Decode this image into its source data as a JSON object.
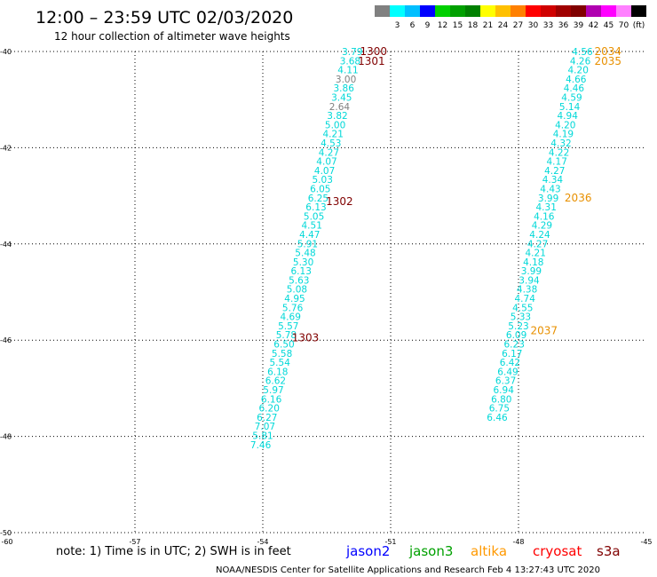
{
  "title": "12:00 – 23:59 UTC 02/03/2020",
  "subtitle": "12 hour collection of altimeter wave heights",
  "note": "note: 1) Time is in UTC; 2) SWH is in feet",
  "credit": "NOAA/NESDIS Center for Satellite Applications and Research   Feb  4 13:27:43 UTC 2020",
  "colorbar": {
    "unit_label": "(ft)",
    "labels": [
      "3",
      "6",
      "9",
      "12",
      "15",
      "18",
      "21",
      "24",
      "27",
      "30",
      "33",
      "36",
      "39",
      "42",
      "45",
      "70"
    ],
    "colors": [
      "#808080",
      "#00ffff",
      "#00bfff",
      "#0000ff",
      "#00d000",
      "#00a000",
      "#008000",
      "#ffff00",
      "#ffc000",
      "#ff8000",
      "#ff0000",
      "#d00000",
      "#a00000",
      "#800000",
      "#b000b0",
      "#ff00ff",
      "#ff80ff",
      "#000000"
    ]
  },
  "legend": [
    {
      "name": "jason2",
      "color": "#0000ff"
    },
    {
      "name": "jason3",
      "color": "#00a000"
    },
    {
      "name": "altika",
      "color": "#ff9900"
    },
    {
      "name": "cryosat",
      "color": "#ff0000"
    },
    {
      "name": "s3a",
      "color": "#800000"
    }
  ],
  "chart_data": {
    "type": "scatter",
    "xlim": [
      -60,
      -45
    ],
    "ylim": [
      -50,
      -40
    ],
    "x_ticks": [
      -60,
      -57,
      -54,
      -51,
      -48,
      -45
    ],
    "y_ticks": [
      -40,
      -42,
      -44,
      -46,
      -48,
      -50
    ],
    "x_tick_labels": [
      "-60",
      "-57",
      "-54",
      "-51",
      "-48",
      "-45"
    ],
    "y_tick_labels": [
      "-40",
      "-42",
      "-44",
      "-46",
      "-48",
      "-50"
    ],
    "grid": true,
    "series": [
      {
        "name": "s3a",
        "color": "#00d8d8",
        "values": [
          {
            "x": -51.9,
            "y": -40.0,
            "v": "3.79",
            "c": "#00d8d8"
          },
          {
            "x": -51.95,
            "y": -40.19,
            "v": "3.68",
            "c": "#00d8d8"
          },
          {
            "x": -52.0,
            "y": -40.38,
            "v": "4.11",
            "c": "#00d8d8"
          },
          {
            "x": -52.05,
            "y": -40.57,
            "v": "3.00",
            "c": "#808080"
          },
          {
            "x": -52.1,
            "y": -40.76,
            "v": "3.86",
            "c": "#00d8d8"
          },
          {
            "x": -52.15,
            "y": -40.95,
            "v": "3.45",
            "c": "#00d8d8"
          },
          {
            "x": -52.2,
            "y": -41.14,
            "v": "2.64",
            "c": "#808080"
          },
          {
            "x": -52.25,
            "y": -41.33,
            "v": "3.82",
            "c": "#00d8d8"
          },
          {
            "x": -52.3,
            "y": -41.52,
            "v": "5.00",
            "c": "#00d8d8"
          },
          {
            "x": -52.35,
            "y": -41.71,
            "v": "4.21",
            "c": "#00d8d8"
          },
          {
            "x": -52.4,
            "y": -41.9,
            "v": "4.53",
            "c": "#00d8d8"
          },
          {
            "x": -52.45,
            "y": -42.09,
            "v": "4.27",
            "c": "#00d8d8"
          },
          {
            "x": -52.5,
            "y": -42.28,
            "v": "4.07",
            "c": "#00d8d8"
          },
          {
            "x": -52.55,
            "y": -42.47,
            "v": "4.07",
            "c": "#00d8d8"
          },
          {
            "x": -52.6,
            "y": -42.66,
            "v": "5.03",
            "c": "#00d8d8"
          },
          {
            "x": -52.65,
            "y": -42.85,
            "v": "6.05",
            "c": "#00d8d8"
          },
          {
            "x": -52.7,
            "y": -43.04,
            "v": "6.25",
            "c": "#00d8d8"
          },
          {
            "x": -52.75,
            "y": -43.23,
            "v": "6.13",
            "c": "#00d8d8"
          },
          {
            "x": -52.8,
            "y": -43.42,
            "v": "5.05",
            "c": "#00d8d8"
          },
          {
            "x": -52.85,
            "y": -43.61,
            "v": "4.51",
            "c": "#00d8d8"
          },
          {
            "x": -52.9,
            "y": -43.8,
            "v": "4.47",
            "c": "#00d8d8"
          },
          {
            "x": -52.95,
            "y": -43.99,
            "v": "5.91",
            "c": "#00d8d8"
          },
          {
            "x": -53.0,
            "y": -44.18,
            "v": "5.48",
            "c": "#00d8d8"
          },
          {
            "x": -53.05,
            "y": -44.37,
            "v": "5.30",
            "c": "#00d8d8"
          },
          {
            "x": -53.1,
            "y": -44.56,
            "v": "6.13",
            "c": "#00d8d8"
          },
          {
            "x": -53.15,
            "y": -44.75,
            "v": "5.63",
            "c": "#00d8d8"
          },
          {
            "x": -53.2,
            "y": -44.94,
            "v": "5.08",
            "c": "#00d8d8"
          },
          {
            "x": -53.25,
            "y": -45.13,
            "v": "4.95",
            "c": "#00d8d8"
          },
          {
            "x": -53.3,
            "y": -45.32,
            "v": "5.76",
            "c": "#00d8d8"
          },
          {
            "x": -53.35,
            "y": -45.51,
            "v": "4.69",
            "c": "#00d8d8"
          },
          {
            "x": -53.4,
            "y": -45.7,
            "v": "5.57",
            "c": "#00d8d8"
          },
          {
            "x": -53.45,
            "y": -45.89,
            "v": "5.78",
            "c": "#00d8d8"
          },
          {
            "x": -53.5,
            "y": -46.08,
            "v": "6.50",
            "c": "#00d8d8"
          },
          {
            "x": -53.55,
            "y": -46.27,
            "v": "5.58",
            "c": "#00d8d8"
          },
          {
            "x": -53.6,
            "y": -46.46,
            "v": "5.54",
            "c": "#00d8d8"
          },
          {
            "x": -53.65,
            "y": -46.65,
            "v": "6.18",
            "c": "#00d8d8"
          },
          {
            "x": -53.7,
            "y": -46.84,
            "v": "6.62",
            "c": "#00d8d8"
          },
          {
            "x": -53.75,
            "y": -47.03,
            "v": "5.97",
            "c": "#00d8d8"
          },
          {
            "x": -53.8,
            "y": -47.22,
            "v": "6.16",
            "c": "#00d8d8"
          },
          {
            "x": -53.85,
            "y": -47.41,
            "v": "6.20",
            "c": "#00d8d8"
          },
          {
            "x": -53.9,
            "y": -47.6,
            "v": "6.27",
            "c": "#00d8d8"
          },
          {
            "x": -53.95,
            "y": -47.79,
            "v": "7.07",
            "c": "#00d8d8"
          },
          {
            "x": -54.0,
            "y": -47.98,
            "v": "5.81",
            "c": "#00d8d8"
          },
          {
            "x": -54.05,
            "y": -48.17,
            "v": "7.46",
            "c": "#00d8d8"
          }
        ]
      },
      {
        "name": "altika",
        "color": "#00d8d8",
        "values": [
          {
            "x": -46.5,
            "y": -40.0,
            "v": "4.56",
            "c": "#00d8d8"
          },
          {
            "x": -46.55,
            "y": -40.19,
            "v": "4.26",
            "c": "#00d8d8"
          },
          {
            "x": -46.6,
            "y": -40.38,
            "v": "4.20",
            "c": "#00d8d8"
          },
          {
            "x": -46.65,
            "y": -40.57,
            "v": "4.66",
            "c": "#00d8d8"
          },
          {
            "x": -46.7,
            "y": -40.76,
            "v": "4.46",
            "c": "#00d8d8"
          },
          {
            "x": -46.75,
            "y": -40.95,
            "v": "4.59",
            "c": "#00d8d8"
          },
          {
            "x": -46.8,
            "y": -41.14,
            "v": "5.14",
            "c": "#00d8d8"
          },
          {
            "x": -46.85,
            "y": -41.33,
            "v": "4.94",
            "c": "#00d8d8"
          },
          {
            "x": -46.9,
            "y": -41.52,
            "v": "4.20",
            "c": "#00d8d8"
          },
          {
            "x": -46.95,
            "y": -41.71,
            "v": "4.19",
            "c": "#00d8d8"
          },
          {
            "x": -47.0,
            "y": -41.9,
            "v": "4.32",
            "c": "#00d8d8"
          },
          {
            "x": -47.05,
            "y": -42.09,
            "v": "4.22",
            "c": "#00d8d8"
          },
          {
            "x": -47.1,
            "y": -42.28,
            "v": "4.17",
            "c": "#00d8d8"
          },
          {
            "x": -47.15,
            "y": -42.47,
            "v": "4.27",
            "c": "#00d8d8"
          },
          {
            "x": -47.2,
            "y": -42.66,
            "v": "4.34",
            "c": "#00d8d8"
          },
          {
            "x": -47.25,
            "y": -42.85,
            "v": "4.43",
            "c": "#00d8d8"
          },
          {
            "x": -47.3,
            "y": -43.04,
            "v": "3.99",
            "c": "#00d8d8"
          },
          {
            "x": -47.35,
            "y": -43.23,
            "v": "4.31",
            "c": "#00d8d8"
          },
          {
            "x": -47.4,
            "y": -43.42,
            "v": "4.16",
            "c": "#00d8d8"
          },
          {
            "x": -47.45,
            "y": -43.61,
            "v": "4.29",
            "c": "#00d8d8"
          },
          {
            "x": -47.5,
            "y": -43.8,
            "v": "4.24",
            "c": "#00d8d8"
          },
          {
            "x": -47.55,
            "y": -43.99,
            "v": "4.27",
            "c": "#00d8d8"
          },
          {
            "x": -47.6,
            "y": -44.18,
            "v": "4.21",
            "c": "#00d8d8"
          },
          {
            "x": -47.65,
            "y": -44.37,
            "v": "4.18",
            "c": "#00d8d8"
          },
          {
            "x": -47.7,
            "y": -44.56,
            "v": "3.99",
            "c": "#00d8d8"
          },
          {
            "x": -47.75,
            "y": -44.75,
            "v": "3.94",
            "c": "#00d8d8"
          },
          {
            "x": -47.8,
            "y": -44.94,
            "v": "4.38",
            "c": "#00d8d8"
          },
          {
            "x": -47.85,
            "y": -45.13,
            "v": "4.74",
            "c": "#00d8d8"
          },
          {
            "x": -47.9,
            "y": -45.32,
            "v": "4.55",
            "c": "#00d8d8"
          },
          {
            "x": -47.95,
            "y": -45.51,
            "v": "5.33",
            "c": "#00d8d8"
          },
          {
            "x": -48.0,
            "y": -45.7,
            "v": "5.23",
            "c": "#00d8d8"
          },
          {
            "x": -48.05,
            "y": -45.89,
            "v": "6.09",
            "c": "#00d8d8"
          },
          {
            "x": -48.1,
            "y": -46.08,
            "v": "6.23",
            "c": "#00d8d8"
          },
          {
            "x": -48.15,
            "y": -46.27,
            "v": "6.17",
            "c": "#00d8d8"
          },
          {
            "x": -48.2,
            "y": -46.46,
            "v": "6.42",
            "c": "#00d8d8"
          },
          {
            "x": -48.25,
            "y": -46.65,
            "v": "6.49",
            "c": "#00d8d8"
          },
          {
            "x": -48.3,
            "y": -46.84,
            "v": "6.37",
            "c": "#00d8d8"
          },
          {
            "x": -48.35,
            "y": -47.03,
            "v": "6.94",
            "c": "#00d8d8"
          },
          {
            "x": -48.4,
            "y": -47.22,
            "v": "6.80",
            "c": "#00d8d8"
          },
          {
            "x": -48.45,
            "y": -47.41,
            "v": "6.75",
            "c": "#00d8d8"
          },
          {
            "x": -48.5,
            "y": -47.6,
            "v": "6.46",
            "c": "#00d8d8"
          }
        ]
      }
    ],
    "time_labels": [
      {
        "x": -51.4,
        "y": -40.0,
        "text": "1300",
        "color": "#800000"
      },
      {
        "x": -51.45,
        "y": -40.2,
        "text": "1301",
        "color": "#800000"
      },
      {
        "x": -52.2,
        "y": -43.12,
        "text": "1302",
        "color": "#800000"
      },
      {
        "x": -53.0,
        "y": -45.95,
        "text": "1303",
        "color": "#800000"
      },
      {
        "x": -45.9,
        "y": -40.0,
        "text": "2034",
        "color": "#e89000"
      },
      {
        "x": -45.9,
        "y": -40.2,
        "text": "2035",
        "color": "#e89000"
      },
      {
        "x": -46.6,
        "y": -43.04,
        "text": "2036",
        "color": "#e89000"
      },
      {
        "x": -47.4,
        "y": -45.8,
        "text": "2037",
        "color": "#e89000"
      }
    ]
  }
}
